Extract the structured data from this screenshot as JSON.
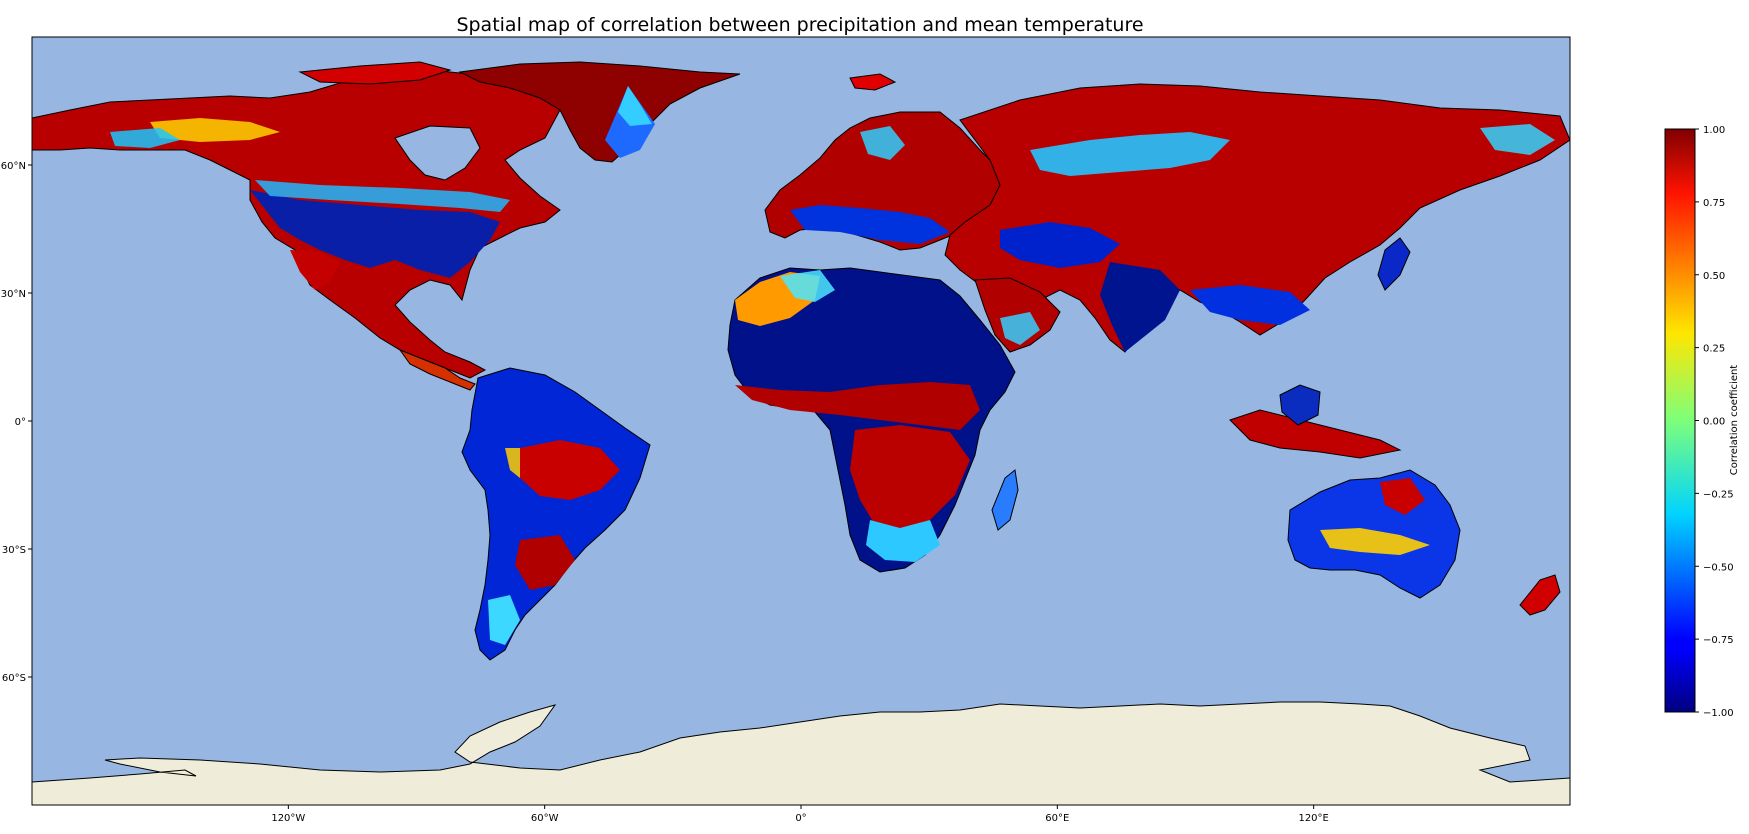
{
  "title": "Spatial map of correlation between precipitation and mean temperature",
  "map": {
    "projection": "PlateCarree",
    "extent_lon": [
      -180,
      180
    ],
    "extent_lat": [
      -90,
      90
    ],
    "ocean_color": "#97b6e1",
    "land_color": "#efedda",
    "lon_ticks": [
      {
        "value": -120,
        "label": "120°W"
      },
      {
        "value": -60,
        "label": "60°W"
      },
      {
        "value": 0,
        "label": "0°"
      },
      {
        "value": 60,
        "label": "60°E"
      },
      {
        "value": 120,
        "label": "120°E"
      }
    ],
    "lat_ticks": [
      {
        "value": 60,
        "label": "60°N"
      },
      {
        "value": 30,
        "label": "30°N"
      },
      {
        "value": 0,
        "label": "0°"
      },
      {
        "value": -30,
        "label": "30°S"
      },
      {
        "value": -60,
        "label": "60°S"
      }
    ]
  },
  "colorbar": {
    "label": "Correlation coefficient",
    "colormap": "jet",
    "range": [
      -1.0,
      1.0
    ],
    "ticks": [
      "1.00",
      "0.75",
      "0.50",
      "0.25",
      "0.00",
      "−0.25",
      "−0.50",
      "−0.75",
      "−1.00"
    ],
    "tick_values": [
      1.0,
      0.75,
      0.5,
      0.25,
      0.0,
      -0.25,
      -0.5,
      -0.75,
      -1.0
    ]
  }
}
